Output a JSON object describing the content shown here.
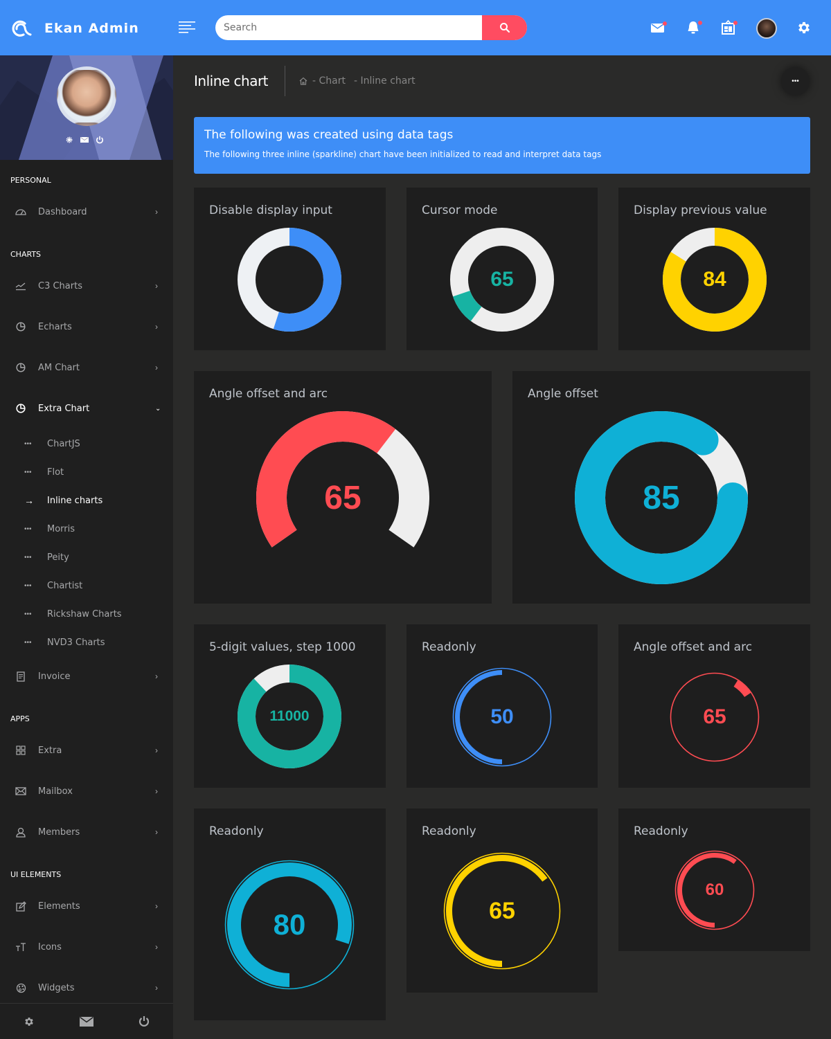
{
  "header": {
    "brand": "Ekan Admin",
    "search_placeholder": "Search",
    "icons": [
      "menu-icon",
      "search-icon",
      "mail-icon",
      "bell-icon",
      "calendar-icon",
      "user-avatar",
      "gear-icon"
    ],
    "colors": {
      "bar": "#3e8ef7",
      "search_button": "#ff4c61",
      "badge": "#ff4c61"
    }
  },
  "sidebar": {
    "sections": [
      {
        "title": "PERSONAL",
        "items": [
          {
            "label": "Dashboard",
            "icon": "dashboard-icon"
          }
        ]
      },
      {
        "title": "CHARTS",
        "items": [
          {
            "label": "C3 Charts",
            "icon": "trend-icon"
          },
          {
            "label": "Echarts",
            "icon": "pie-icon"
          },
          {
            "label": "AM Chart",
            "icon": "pie-icon"
          },
          {
            "label": "Extra Chart",
            "icon": "pie-icon",
            "expanded": true,
            "children": [
              "ChartJS",
              "Flot",
              "Inline charts",
              "Morris",
              "Peity",
              "Chartist",
              "Rickshaw Charts",
              "NVD3 Charts"
            ],
            "active_child": "Inline charts"
          },
          {
            "label": "Invoice",
            "icon": "invoice-icon"
          }
        ]
      },
      {
        "title": "APPS",
        "items": [
          {
            "label": "Extra",
            "icon": "grid-icon"
          },
          {
            "label": "Mailbox",
            "icon": "mail-icon"
          },
          {
            "label": "Members",
            "icon": "user-icon"
          }
        ]
      },
      {
        "title": "UI ELEMENTS",
        "items": [
          {
            "label": "Elements",
            "icon": "edit-icon"
          },
          {
            "label": "Icons",
            "icon": "text-size-icon"
          },
          {
            "label": "Widgets",
            "icon": "palette-icon"
          }
        ]
      }
    ],
    "footer_icons": [
      "gear-icon",
      "mail-icon",
      "power-icon"
    ]
  },
  "page": {
    "title": "Inline chart",
    "breadcrumb": [
      "- Chart",
      "- Inline chart"
    ],
    "callout": {
      "title": "The following was created using data tags",
      "text": "The following three inline (sparkline) chart have been initialized to read and interpret data tags"
    }
  },
  "chart_data": [
    {
      "type": "pie",
      "title": "Disable display input",
      "value": 55,
      "max": 100,
      "display_value": "",
      "color": "#3e8ef7",
      "bg": "#eef1f4"
    },
    {
      "type": "pie",
      "title": "Cursor mode",
      "value": 65,
      "max": 100,
      "display_value": "65",
      "color": "#17b3a3",
      "bg": "#eeeeee",
      "cursor": true
    },
    {
      "type": "pie",
      "title": "Display previous value",
      "value": 84,
      "max": 100,
      "display_value": "84",
      "color": "#ffd200",
      "bg": "#eeeeee"
    },
    {
      "type": "pie",
      "title": "Angle offset and arc",
      "value": 65,
      "max": 100,
      "display_value": "65",
      "color": "#ff4c52",
      "bg": "#eeeeee",
      "angle_offset": -125,
      "angle_arc": 250
    },
    {
      "type": "pie",
      "title": "Angle offset",
      "value": 85,
      "max": 100,
      "display_value": "85",
      "color": "#0fb0d6",
      "bg": "#eeeeee",
      "angle_offset": 90
    },
    {
      "type": "pie",
      "title": "5-digit values, step 1000",
      "value": 11000,
      "max": 12500,
      "display_value": "11000",
      "color": "#17b3a3",
      "bg": "#eeeeee"
    },
    {
      "type": "pie",
      "title": "Readonly",
      "value": 50,
      "max": 100,
      "display_value": "50",
      "color": "#3e8ef7",
      "readonly": true
    },
    {
      "type": "pie",
      "title": "Angle offset and arc",
      "value": 65,
      "max": 100,
      "display_value": "65",
      "color": "#ff4c52",
      "readonly": true,
      "segment_only": true
    },
    {
      "type": "pie",
      "title": "Readonly",
      "value": 80,
      "max": 100,
      "display_value": "80",
      "color": "#0fb0d6",
      "readonly": true
    },
    {
      "type": "pie",
      "title": "Readonly",
      "value": 65,
      "max": 100,
      "display_value": "65",
      "color": "#ffd200",
      "readonly": true
    },
    {
      "type": "pie",
      "title": "Readonly",
      "value": 60,
      "max": 100,
      "display_value": "60",
      "color": "#ff4c52",
      "readonly": true
    }
  ]
}
